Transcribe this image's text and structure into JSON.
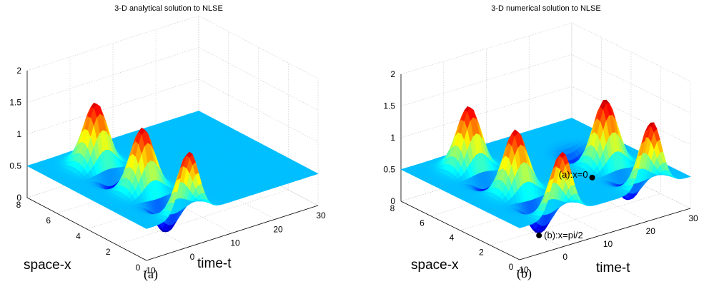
{
  "chart_data": [
    {
      "type": "surface",
      "title": "3-D analytical solution to NLSE",
      "xlabel": "time-t",
      "ylabel": "space-x",
      "panel_label": "(a)",
      "xlim": [
        -10,
        30
      ],
      "ylim": [
        0,
        8
      ],
      "zlim": [
        0,
        2
      ],
      "x_ticks": [
        "-10",
        "0",
        "10",
        "20",
        "30"
      ],
      "y_ticks": [
        "0",
        "2",
        "4",
        "6",
        "8"
      ],
      "z_ticks": [
        "0",
        "0.5",
        "1",
        "1.5",
        "2"
      ],
      "colormap": "jet",
      "grid": true,
      "baseline_value": 0.5,
      "features": [
        {
          "kind": "peak",
          "t": 0,
          "x": 0,
          "z": 1.5
        },
        {
          "kind": "dip",
          "t": 0,
          "x": 1.57,
          "z": 0
        },
        {
          "kind": "peak",
          "t": 0,
          "x": 3.14,
          "z": 1.5
        },
        {
          "kind": "dip",
          "t": 0,
          "x": 4.71,
          "z": 0
        },
        {
          "kind": "peak",
          "t": 0,
          "x": 6.28,
          "z": 1.5
        }
      ]
    },
    {
      "type": "surface",
      "title": "3-D numerical solution to NLSE",
      "xlabel": "time-t",
      "ylabel": "space-x",
      "panel_label": "(b)",
      "xlim": [
        -10,
        30
      ],
      "ylim": [
        0,
        8
      ],
      "zlim": [
        0,
        2
      ],
      "x_ticks": [
        "-10",
        "0",
        "10",
        "20",
        "30"
      ],
      "y_ticks": [
        "0",
        "2",
        "4",
        "6",
        "8"
      ],
      "z_ticks": [
        "0",
        "0.5",
        "1",
        "1.5",
        "2"
      ],
      "colormap": "jet",
      "grid": true,
      "baseline_value": 0.5,
      "features": [
        {
          "kind": "peak",
          "t": 0,
          "x": 0,
          "z": 1.5
        },
        {
          "kind": "dip",
          "t": 0,
          "x": 1.57,
          "z": 0
        },
        {
          "kind": "peak",
          "t": 0,
          "x": 3.14,
          "z": 1.5
        },
        {
          "kind": "dip",
          "t": 0,
          "x": 4.71,
          "z": 0
        },
        {
          "kind": "peak",
          "t": 0,
          "x": 6.28,
          "z": 1.5
        },
        {
          "kind": "peak",
          "t": 21,
          "x": 0,
          "z": 1.55
        },
        {
          "kind": "dip",
          "t": 21,
          "x": 1.57,
          "z": 0.1
        },
        {
          "kind": "peak",
          "t": 21,
          "x": 3.14,
          "z": 1.55
        },
        {
          "kind": "dip",
          "t": 21,
          "x": 4.71,
          "z": 0.1
        }
      ],
      "annotations": [
        {
          "label": "(a):x=0",
          "t": 7,
          "x": 0,
          "z": 0.95
        },
        {
          "label": "(b):x=pi/2",
          "t": 0,
          "x": 1.57,
          "z": 0
        }
      ]
    }
  ]
}
